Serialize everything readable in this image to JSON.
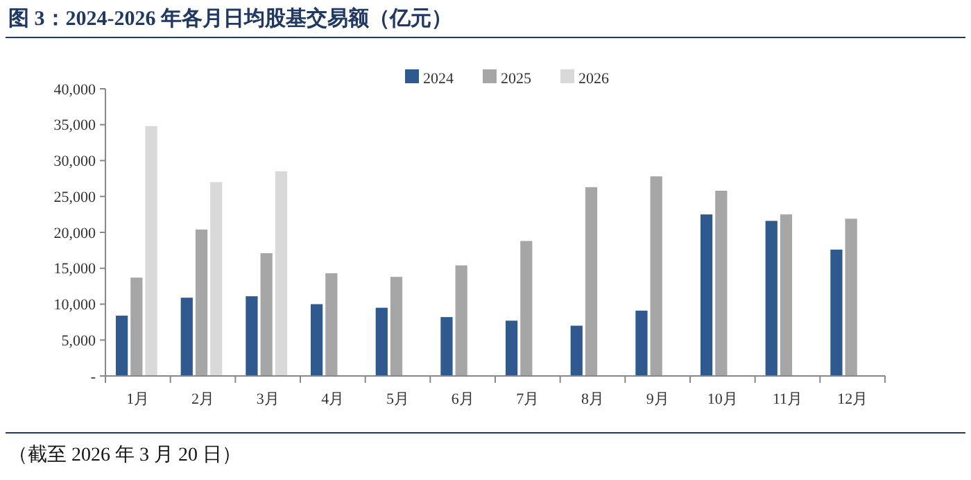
{
  "chart_data": {
    "type": "bar",
    "title": "图 3：2024-2026 年各月日均股基交易额（亿元）",
    "categories": [
      "1月",
      "2月",
      "3月",
      "4月",
      "5月",
      "6月",
      "7月",
      "8月",
      "9月",
      "10月",
      "11月",
      "12月"
    ],
    "series": [
      {
        "name": "2024",
        "color": "#2f5a8f",
        "values": [
          8400,
          10900,
          11100,
          10000,
          9500,
          8200,
          7700,
          7000,
          9100,
          22500,
          21600,
          17600
        ]
      },
      {
        "name": "2025",
        "color": "#a6a6a6",
        "values": [
          13700,
          20400,
          17100,
          14300,
          13800,
          15400,
          18800,
          26300,
          27800,
          25800,
          22500,
          21900
        ]
      },
      {
        "name": "2026",
        "color": "#d9d9d9",
        "values": [
          34800,
          27000,
          28500,
          null,
          null,
          null,
          null,
          null,
          null,
          null,
          null,
          null
        ]
      }
    ],
    "ylim": [
      0,
      40000
    ],
    "yticks": [
      {
        "value": 0,
        "label": "-"
      },
      {
        "value": 5000,
        "label": "5,000"
      },
      {
        "value": 10000,
        "label": "10,000"
      },
      {
        "value": 15000,
        "label": "15,000"
      },
      {
        "value": 20000,
        "label": "20,000"
      },
      {
        "value": 25000,
        "label": "25,000"
      },
      {
        "value": 30000,
        "label": "30,000"
      },
      {
        "value": 35000,
        "label": "35,000"
      },
      {
        "value": 40000,
        "label": "40,000"
      }
    ],
    "legend": "top",
    "grid": false,
    "annotations": [
      "（截至 2026 年 3 月 20 日）"
    ]
  }
}
